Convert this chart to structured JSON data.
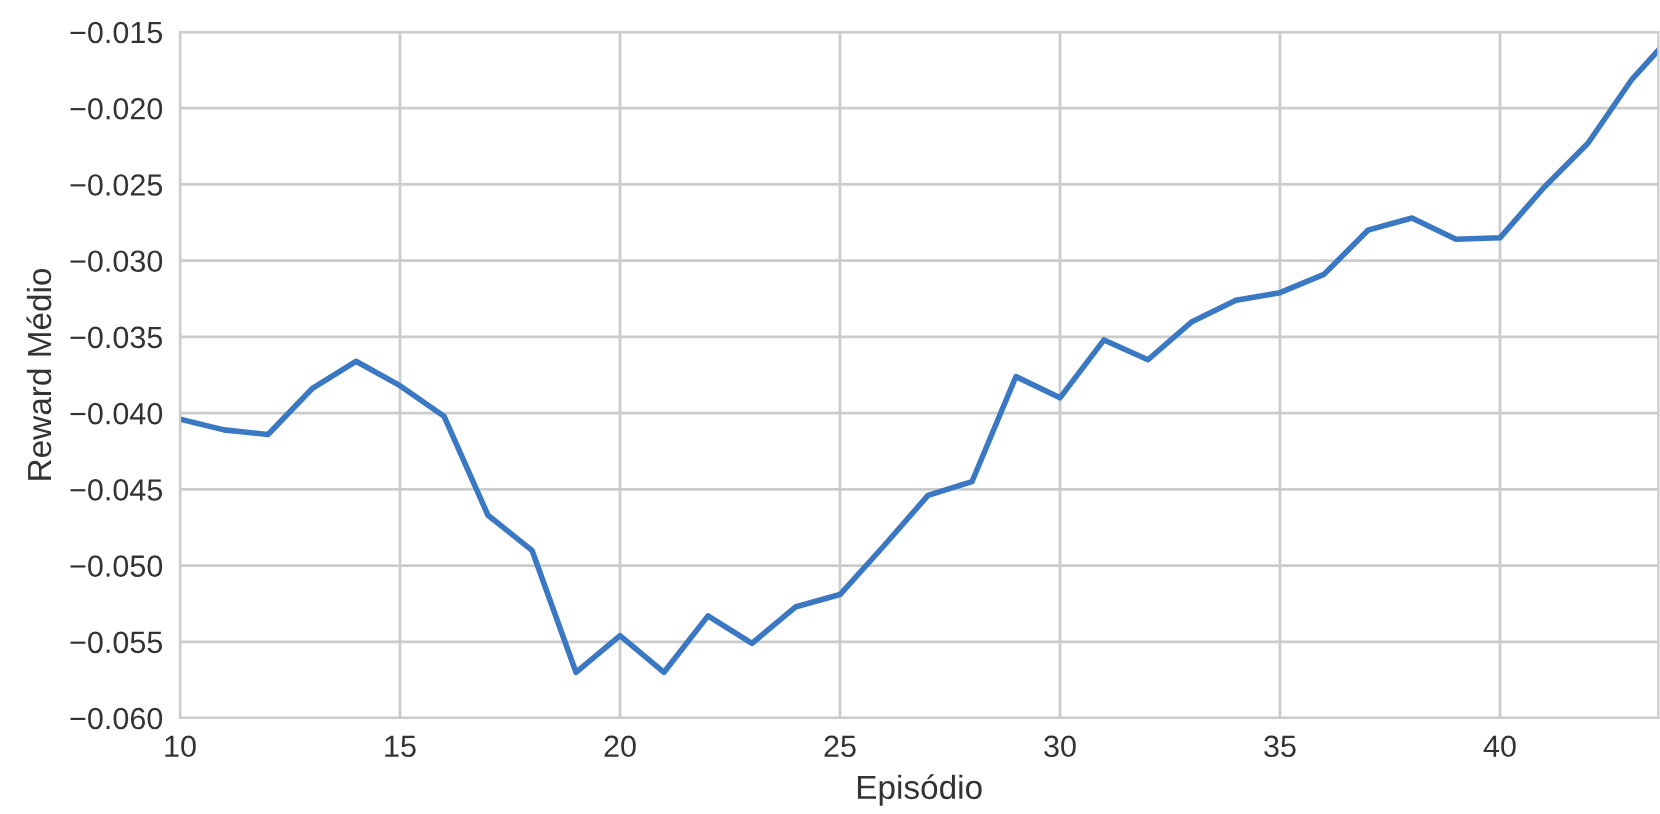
{
  "chart_data": {
    "type": "line",
    "xlabel": "Episódio",
    "ylabel": "Reward Médio",
    "x": [
      10,
      11,
      12,
      13,
      14,
      15,
      16,
      17,
      18,
      19,
      20,
      21,
      22,
      23,
      24,
      25,
      26,
      27,
      28,
      29,
      30,
      31,
      32,
      33,
      34,
      35,
      36,
      37,
      38,
      39,
      40,
      41,
      42,
      43,
      43.6
    ],
    "series": [
      {
        "color": "#3a78c3",
        "values": [
          -0.0404,
          -0.0411,
          -0.0414,
          -0.0384,
          -0.0366,
          -0.0382,
          -0.0402,
          -0.0467,
          -0.049,
          -0.057,
          -0.0546,
          -0.057,
          -0.0533,
          -0.0551,
          -0.0527,
          -0.0519,
          -0.0487,
          -0.0454,
          -0.0445,
          -0.0376,
          -0.039,
          -0.0352,
          -0.0365,
          -0.034,
          -0.0326,
          -0.0321,
          -0.0309,
          -0.028,
          -0.0272,
          -0.0286,
          -0.0285,
          -0.0252,
          -0.0223,
          -0.0181,
          -0.0162
        ]
      }
    ],
    "xlim": [
      10,
      43.6
    ],
    "xticks": [
      10,
      15,
      20,
      25,
      30,
      35,
      40
    ],
    "ylim": [
      -0.06,
      -0.015
    ],
    "yticks": [
      {
        "value": -0.06,
        "label": "−0.060"
      },
      {
        "value": -0.055,
        "label": "−0.055"
      },
      {
        "value": -0.05,
        "label": "−0.050"
      },
      {
        "value": -0.045,
        "label": "−0.045"
      },
      {
        "value": -0.04,
        "label": "−0.040"
      },
      {
        "value": -0.035,
        "label": "−0.035"
      },
      {
        "value": -0.03,
        "label": "−0.030"
      },
      {
        "value": -0.025,
        "label": "−0.025"
      },
      {
        "value": -0.02,
        "label": "−0.020"
      },
      {
        "value": -0.015,
        "label": "−0.015"
      }
    ],
    "grid": true,
    "line_style": "solid"
  }
}
